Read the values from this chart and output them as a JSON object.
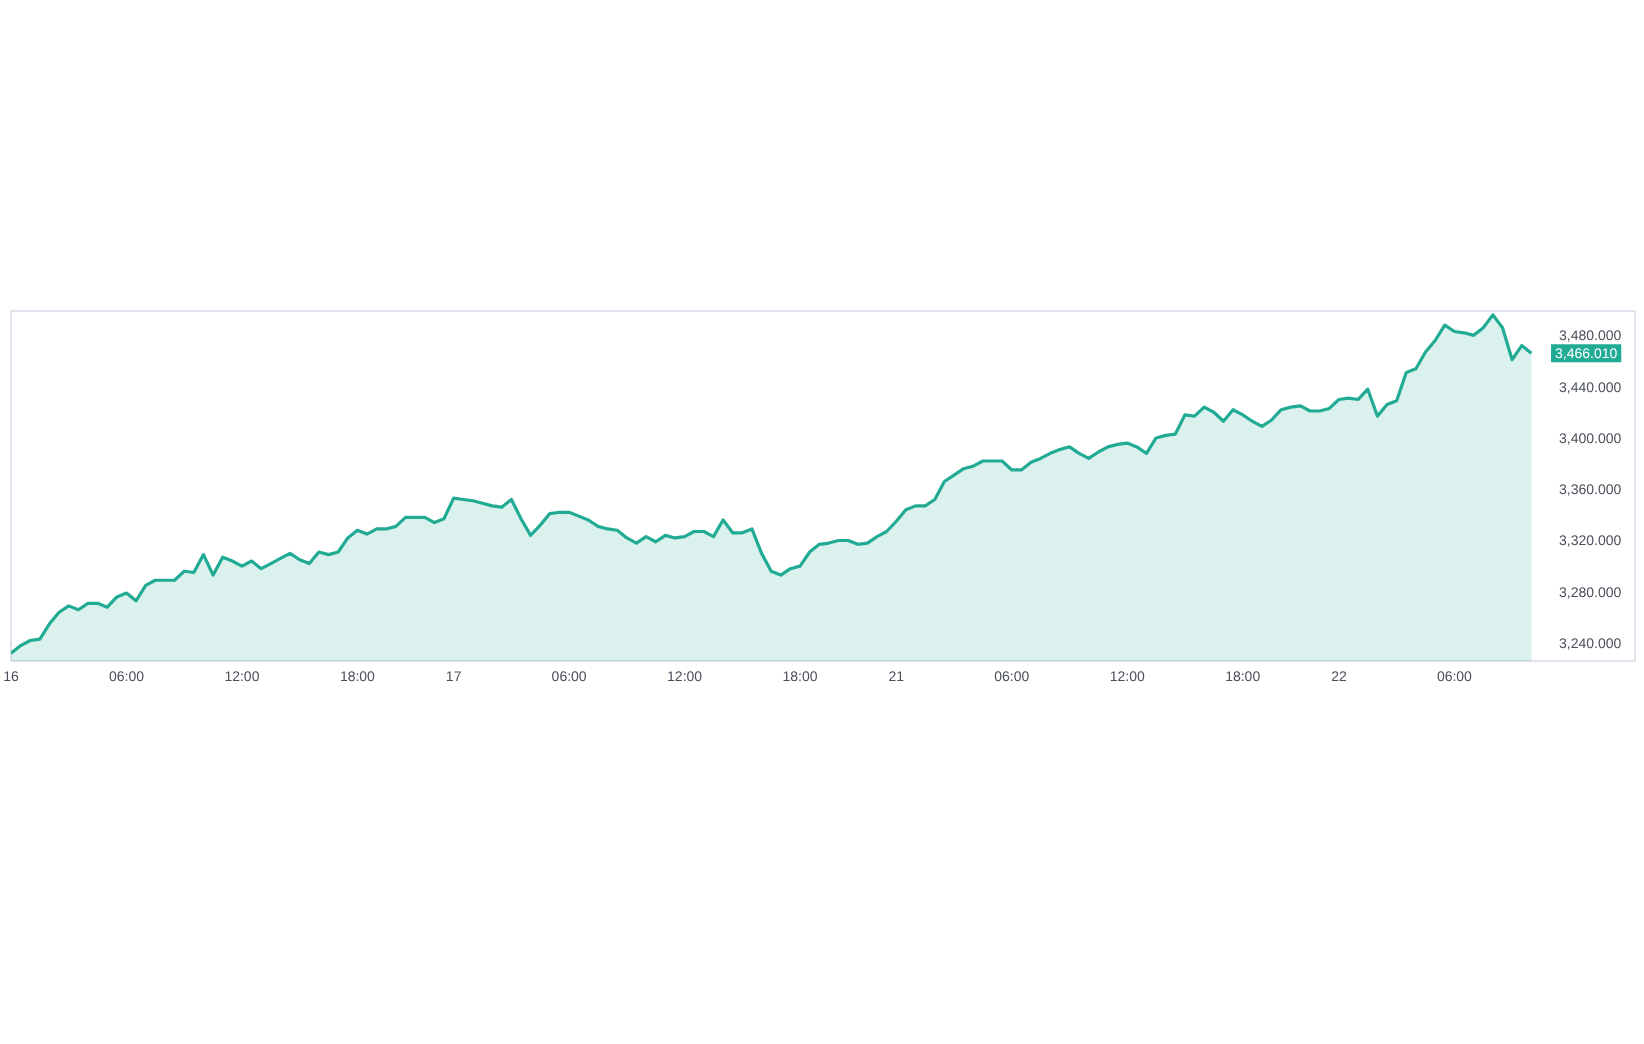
{
  "chart_data": {
    "type": "area",
    "color": "#22ab94",
    "categories": [
      "16",
      null,
      null,
      null,
      null,
      null,
      null,
      null,
      null,
      null,
      null,
      null,
      "06:00",
      null,
      null,
      null,
      null,
      null,
      null,
      null,
      null,
      null,
      null,
      null,
      "12:00",
      null,
      null,
      null,
      null,
      null,
      null,
      null,
      null,
      null,
      null,
      null,
      "18:00",
      null,
      null,
      null,
      null,
      null,
      null,
      null,
      null,
      null,
      "17",
      null,
      null,
      null,
      null,
      null,
      null,
      null,
      null,
      null,
      null,
      null,
      "06:00",
      null,
      null,
      null,
      null,
      null,
      null,
      null,
      null,
      null,
      null,
      null,
      "12:00",
      null,
      null,
      null,
      null,
      null,
      null,
      null,
      null,
      null,
      null,
      null,
      "18:00",
      null,
      null,
      null,
      null,
      null,
      null,
      null,
      null,
      null,
      "21",
      null,
      null,
      null,
      null,
      null,
      null,
      null,
      null,
      null,
      null,
      null,
      "06:00",
      null,
      null,
      null,
      null,
      null,
      null,
      null,
      null,
      null,
      null,
      null,
      "12:00",
      null,
      null,
      null,
      null,
      null,
      null,
      null,
      null,
      null,
      null,
      null,
      "18:00",
      null,
      null,
      null,
      null,
      null,
      null,
      null,
      null,
      null,
      "22",
      null,
      null,
      null,
      null,
      null,
      null,
      null,
      null,
      null,
      null,
      null,
      "06:00",
      null,
      null,
      null,
      null,
      null,
      null,
      null,
      null
    ],
    "values": [
      3232,
      3238,
      3242,
      3243,
      3255,
      3264,
      3269,
      3266,
      3271,
      3271,
      3268,
      3276,
      3279,
      3273,
      3285,
      3289,
      3289,
      3289,
      3296,
      3295,
      3309,
      3293,
      3307,
      3304,
      3300,
      3304,
      3298,
      3302,
      3306,
      3310,
      3305,
      3302,
      3311,
      3309,
      3311,
      3322,
      3328,
      3325,
      3329,
      3329,
      3331,
      3338,
      3338,
      3338,
      3334,
      3337,
      3353,
      3352,
      3351,
      3349,
      3347,
      3346,
      3352,
      3337,
      3324,
      3332,
      3341,
      3342,
      3342,
      3339,
      3336,
      3331,
      3329,
      3328,
      3322,
      3318,
      3323,
      3319,
      3324,
      3322,
      3323,
      3327,
      3327,
      3323,
      3336,
      3326,
      3326,
      3329,
      3310,
      3296,
      3293,
      3298,
      3300,
      3311,
      3317,
      3318,
      3320,
      3320,
      3317,
      3318,
      3323,
      3327,
      3335,
      3344,
      3347,
      3347,
      3352,
      3366,
      3371,
      3376,
      3378,
      3382,
      3382,
      3382,
      3375,
      3375,
      3381,
      3384,
      3388,
      3391,
      3393,
      3388,
      3384,
      3389,
      3393,
      3395,
      3396,
      3393,
      3388,
      3400,
      3402,
      3403,
      3418,
      3417,
      3424,
      3420,
      3413,
      3422,
      3418,
      3413,
      3409,
      3414,
      3422,
      3424,
      3425,
      3421,
      3421,
      3423,
      3430,
      3431,
      3430,
      3438,
      3417,
      3426,
      3429,
      3451,
      3454,
      3467,
      3476,
      3488,
      3483,
      3482,
      3480,
      3486,
      3496,
      3486,
      3461,
      3472,
      3466
    ],
    "ylim": [
      3226,
      3499
    ],
    "yticks": [
      {
        "value": 3240,
        "label": "3,240.000"
      },
      {
        "value": 3280,
        "label": "3,280.000"
      },
      {
        "value": 3320,
        "label": "3,320.000"
      },
      {
        "value": 3360,
        "label": "3,360.000"
      },
      {
        "value": 3400,
        "label": "3,400.000"
      },
      {
        "value": 3440,
        "label": "3,440.000"
      },
      {
        "value": 3480,
        "label": "3,480.000"
      }
    ],
    "grid": false,
    "annotations": [
      "3,466.010"
    ]
  }
}
